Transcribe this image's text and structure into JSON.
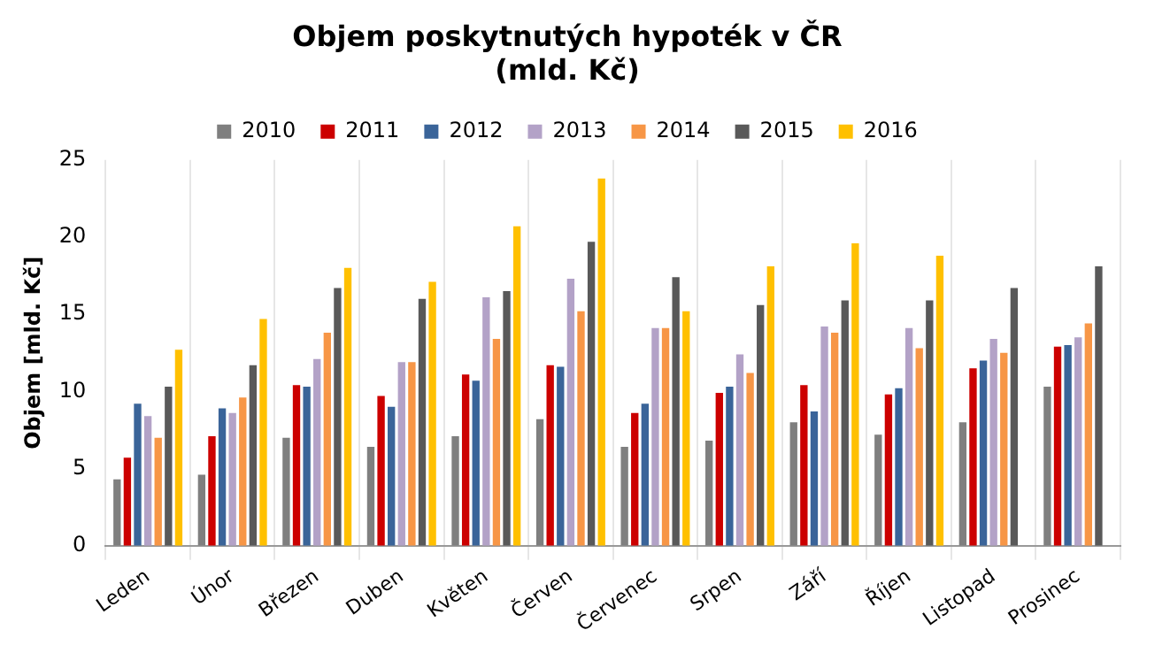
{
  "chart_data": {
    "type": "bar",
    "title": [
      "Objem poskytnutých hypoték v ČR",
      "(mld. Kč)"
    ],
    "ylabel": "Objem [mld. Kč]",
    "categories": [
      "Leden",
      "Únor",
      "Březen",
      "Duben",
      "Květen",
      "Červen",
      "Červenec",
      "Srpen",
      "Září",
      "Říjen",
      "Listopad",
      "Prosinec"
    ],
    "series": [
      {
        "name": "2010",
        "color": "#7f7f7f",
        "values": [
          4.3,
          4.6,
          7.0,
          6.4,
          7.1,
          8.2,
          6.4,
          6.8,
          8.0,
          7.2,
          8.0,
          10.3
        ]
      },
      {
        "name": "2011",
        "color": "#cc0000",
        "values": [
          5.7,
          7.1,
          10.4,
          9.7,
          11.1,
          11.7,
          8.6,
          9.9,
          10.4,
          9.8,
          11.5,
          12.9
        ]
      },
      {
        "name": "2012",
        "color": "#3a6499",
        "values": [
          9.2,
          8.9,
          10.3,
          9.0,
          10.7,
          11.6,
          9.2,
          10.3,
          8.7,
          10.2,
          12.0,
          13.0
        ]
      },
      {
        "name": "2013",
        "color": "#b3a2c7",
        "values": [
          8.4,
          8.6,
          12.1,
          11.9,
          16.1,
          17.3,
          14.1,
          12.4,
          14.2,
          14.1,
          13.4,
          13.5
        ]
      },
      {
        "name": "2014",
        "color": "#f79646",
        "values": [
          7.0,
          9.6,
          13.8,
          11.9,
          13.4,
          15.2,
          14.1,
          11.2,
          13.8,
          12.8,
          12.5,
          14.4
        ]
      },
      {
        "name": "2015",
        "color": "#595959",
        "values": [
          10.3,
          11.7,
          16.7,
          16.0,
          16.5,
          19.7,
          17.4,
          15.6,
          15.9,
          15.9,
          16.7,
          18.1
        ]
      },
      {
        "name": "2016",
        "color": "#ffc000",
        "values": [
          12.7,
          14.7,
          18.0,
          17.1,
          20.7,
          23.8,
          15.2,
          18.1,
          19.6,
          18.8,
          null,
          null
        ]
      }
    ],
    "ylim": [
      0,
      25
    ],
    "yticks": [
      0,
      5,
      10,
      15,
      20,
      25
    ],
    "grid": "x",
    "legend": "top"
  }
}
